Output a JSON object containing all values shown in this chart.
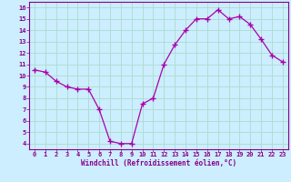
{
  "x": [
    0,
    1,
    2,
    3,
    4,
    5,
    6,
    7,
    8,
    9,
    10,
    11,
    12,
    13,
    14,
    15,
    16,
    17,
    18,
    19,
    20,
    21,
    22,
    23
  ],
  "y": [
    10.5,
    10.3,
    9.5,
    9.0,
    8.8,
    8.8,
    7.0,
    4.2,
    4.0,
    4.0,
    7.5,
    8.0,
    11.0,
    12.7,
    14.0,
    15.0,
    15.0,
    15.8,
    15.0,
    15.2,
    14.5,
    13.2,
    11.8,
    11.2
  ],
  "xlabel": "Windchill (Refroidissement éolien,°C)",
  "xlim": [
    -0.5,
    23.5
  ],
  "ylim": [
    3.5,
    16.5
  ],
  "yticks": [
    4,
    5,
    6,
    7,
    8,
    9,
    10,
    11,
    12,
    13,
    14,
    15,
    16
  ],
  "xticks": [
    0,
    1,
    2,
    3,
    4,
    5,
    6,
    7,
    8,
    9,
    10,
    11,
    12,
    13,
    14,
    15,
    16,
    17,
    18,
    19,
    20,
    21,
    22,
    23
  ],
  "line_color": "#aa00aa",
  "marker": "+",
  "marker_size": 4,
  "bg_color": "#cceeff",
  "grid_color": "#aaddcc",
  "axis_label_color": "#880088",
  "tick_color": "#880088"
}
